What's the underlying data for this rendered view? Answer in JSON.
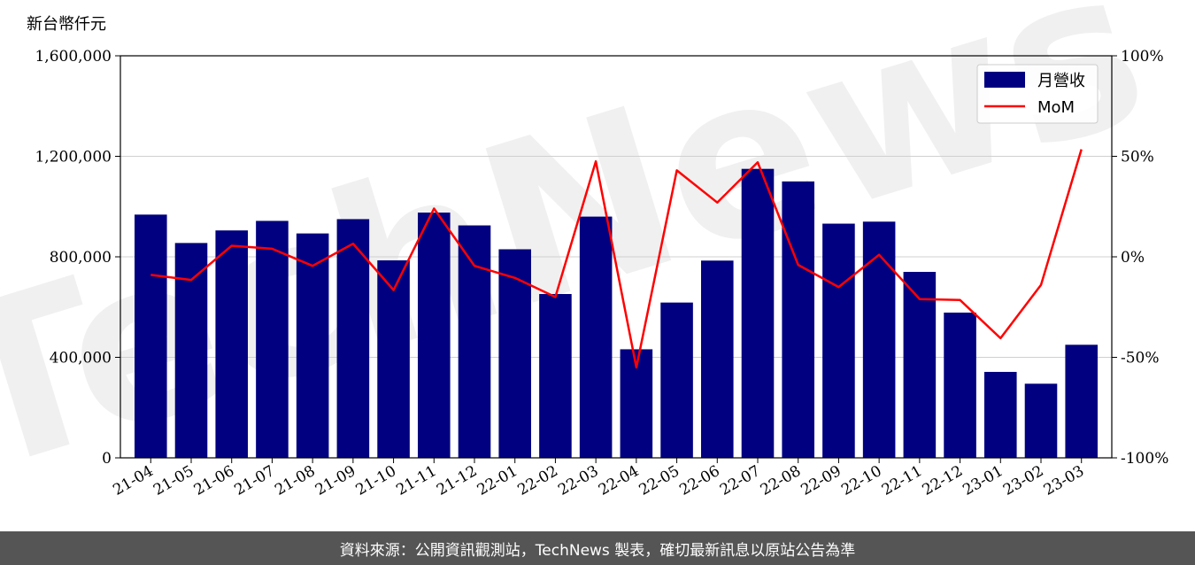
{
  "chart_data": {
    "type": "bar",
    "unit_label": "新台幣仟元",
    "categories": [
      "21-04",
      "21-05",
      "21-06",
      "21-07",
      "21-08",
      "21-09",
      "21-10",
      "21-11",
      "21-12",
      "22-01",
      "22-02",
      "22-03",
      "22-04",
      "22-05",
      "22-06",
      "22-07",
      "22-08",
      "22-09",
      "22-10",
      "22-11",
      "22-12",
      "23-01",
      "23-02",
      "23-03"
    ],
    "series": [
      {
        "name": "月營收",
        "type": "bar",
        "axis": "left",
        "color": "#000080",
        "values": [
          968000,
          855000,
          905000,
          943000,
          893000,
          950000,
          786000,
          976000,
          925000,
          830000,
          652000,
          960000,
          432000,
          618000,
          785000,
          1150000,
          1100000,
          932000,
          940000,
          740000,
          578000,
          342000,
          295000,
          450000
        ]
      },
      {
        "name": "MoM",
        "type": "line",
        "axis": "right",
        "color": "#ff0000",
        "values": [
          -9,
          -11.5,
          5.5,
          4,
          -4.5,
          6.5,
          -16.5,
          24,
          -4.5,
          -10.5,
          -20,
          47.5,
          -55,
          43,
          27,
          47,
          -4,
          -15,
          1,
          -21,
          -21.5,
          -40.5,
          -14,
          53.5
        ]
      }
    ],
    "y_left": {
      "ylim": [
        0,
        1600000
      ],
      "ticks": [
        0,
        400000,
        800000,
        1200000,
        1600000
      ],
      "tick_labels": [
        "0",
        "400,000",
        "800,000",
        "1,200,000",
        "1,600,000"
      ]
    },
    "y_right": {
      "ylim": [
        -100,
        100
      ],
      "ticks": [
        -100,
        -50,
        0,
        50,
        100
      ],
      "tick_labels": [
        "-100%",
        "-50%",
        "0%",
        "50%",
        "100%"
      ]
    },
    "grid": "horizontal",
    "legend_position": "top-right",
    "watermark": "TechNews",
    "footer": "資料來源：公開資訊觀測站，TechNews 製表，確切最新訊息以原站公告為準"
  }
}
